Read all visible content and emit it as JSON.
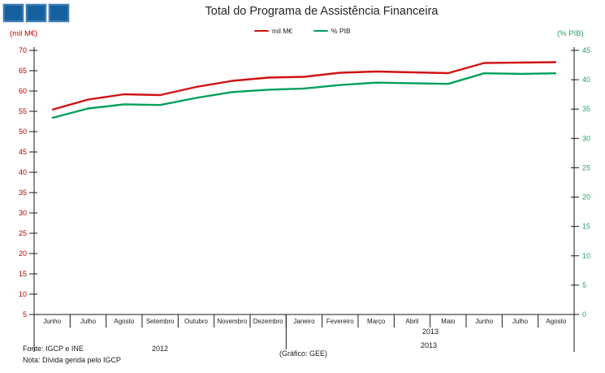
{
  "title": "Total do Programa de Assistência Financeira",
  "axis_captions": {
    "left": "(mil M€)",
    "right": "(% PIB)"
  },
  "footer": {
    "fonte": "Fonte: IGCP e INE",
    "nota": "Nota: Dívida gerida pelo IGCP",
    "grafico": "(Gráfico: GEE)",
    "year_2012": "2012",
    "year_2013_upper": "2013",
    "year_2013_lower": "2013"
  },
  "logo": {
    "squares": 3,
    "color": "#15619f"
  },
  "chart_data": {
    "type": "line",
    "title": "Total do Programa de Assistência Financeira",
    "categories": [
      "Junho",
      "Julho",
      "Agosto",
      "Setembro",
      "Outubro",
      "Novembro",
      "Dezembro",
      "Janeiro",
      "Fevereiro",
      "Março",
      "Abril",
      "Maio",
      "Junho",
      "Julho",
      "Agosto"
    ],
    "year_groups": [
      {
        "label": "2012",
        "from_index": 0,
        "to_index": 6
      },
      {
        "label": "2013",
        "from_index": 7,
        "to_index": 14
      }
    ],
    "series": [
      {
        "name": "mil M€",
        "axis": "left",
        "color": "#d01212",
        "values": [
          55.4,
          57.9,
          59.2,
          59.0,
          61.0,
          62.5,
          63.3,
          63.5,
          64.5,
          64.8,
          64.6,
          64.4,
          66.9,
          67.0,
          67.1
        ]
      },
      {
        "name": "% PIB",
        "axis": "right",
        "color": "#00a05a",
        "values": [
          33.5,
          35.1,
          35.8,
          35.7,
          36.9,
          37.9,
          38.3,
          38.5,
          39.1,
          39.5,
          39.4,
          39.3,
          41.1,
          41.0,
          41.1
        ]
      }
    ],
    "left_axis": {
      "label": "(mil M€)",
      "min": 5,
      "max": 70,
      "step": 5,
      "tick_color": "#c00000"
    },
    "right_axis": {
      "label": "(% PIB)",
      "min": 0,
      "max": 45,
      "step": 5,
      "tick_color": "#2aa065"
    },
    "grid": false,
    "legend_position": "top"
  }
}
